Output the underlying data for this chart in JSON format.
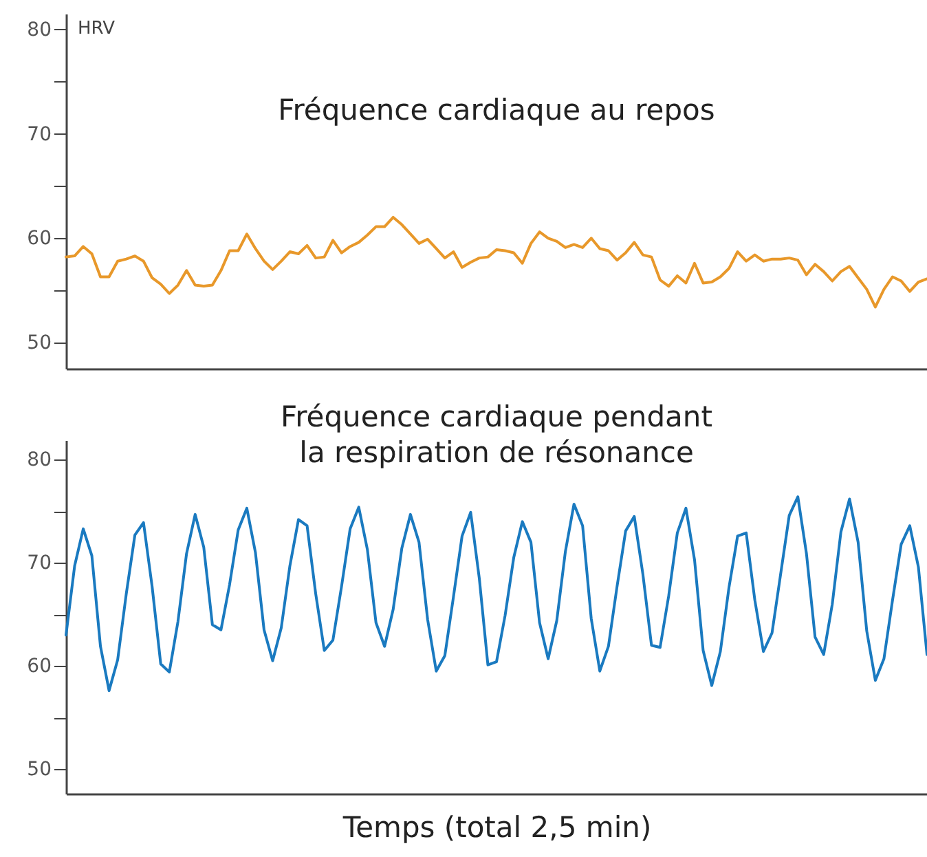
{
  "chart_data": [
    {
      "type": "line",
      "title": "Fréquence cardiaque au repos",
      "ylabel": "HRV",
      "categories": [
        null,
        null,
        null,
        null,
        null,
        null,
        null,
        null,
        null,
        null,
        null,
        null,
        null,
        null,
        null,
        null,
        null,
        null,
        null,
        null,
        null,
        null,
        null,
        null,
        null,
        null,
        null,
        null,
        null,
        null,
        null,
        null,
        null,
        null,
        null,
        null,
        null,
        null,
        null,
        null,
        null,
        null,
        null,
        null,
        null,
        null,
        null,
        null,
        null,
        null,
        null,
        null,
        null,
        null,
        null,
        null,
        null,
        null,
        null,
        null,
        null,
        null,
        null,
        null,
        null,
        null,
        null,
        null,
        null,
        null,
        null,
        null,
        null,
        null,
        null,
        null,
        null,
        null,
        null,
        null,
        null,
        null,
        null,
        null,
        null,
        null,
        null,
        null,
        null,
        null,
        null,
        null,
        null,
        null,
        null,
        null,
        null,
        null,
        null,
        null,
        null
      ],
      "ylim": [
        47.5,
        81.5
      ],
      "yticks": [
        50,
        {
          "value": 55,
          "label": null
        },
        60,
        {
          "value": 65,
          "label": null
        },
        70,
        {
          "value": 75,
          "label": null
        },
        80
      ],
      "tick_labels": "y",
      "grid": false,
      "series": [
        {
          "color": "#e8982a",
          "values": [
            58.2,
            58.3,
            59.2,
            58.5,
            56.3,
            56.3,
            57.8,
            58.0,
            58.3,
            57.8,
            56.2,
            55.6,
            54.7,
            55.5,
            56.9,
            55.5,
            55.4,
            55.5,
            56.9,
            58.8,
            58.8,
            60.4,
            59.0,
            57.8,
            57.0,
            57.8,
            58.7,
            58.5,
            59.3,
            58.1,
            58.2,
            59.8,
            58.6,
            59.2,
            59.6,
            60.3,
            61.1,
            61.1,
            62.0,
            61.3,
            60.4,
            59.5,
            59.9,
            59.0,
            58.1,
            58.7,
            57.2,
            57.7,
            58.1,
            58.2,
            58.9,
            58.8,
            58.6,
            57.6,
            59.5,
            60.6,
            60.0,
            59.7,
            59.1,
            59.4,
            59.1,
            60.0,
            59.0,
            58.8,
            57.9,
            58.6,
            59.6,
            58.4,
            58.2,
            56.0,
            55.4,
            56.4,
            55.7,
            57.6,
            55.7,
            55.8,
            56.3,
            57.1,
            58.7,
            57.8,
            58.4,
            57.8,
            58.0,
            58.0,
            58.1,
            57.9,
            56.5,
            57.5,
            56.8,
            55.9,
            56.8,
            57.3,
            56.2,
            55.1,
            53.4,
            55.1,
            56.3,
            55.9,
            54.9,
            55.8,
            56.1
          ]
        }
      ]
    },
    {
      "type": "line",
      "title": "Fréquence cardiaque pendant\nla respiration de résonance",
      "xlabel": "Temps (total 2,5 min)",
      "categories": [
        null,
        null,
        null,
        null,
        null,
        null,
        null,
        null,
        null,
        null,
        null,
        null,
        null,
        null,
        null,
        null,
        null,
        null,
        null,
        null,
        null,
        null,
        null,
        null,
        null,
        null,
        null,
        null,
        null,
        null,
        null,
        null,
        null,
        null,
        null,
        null,
        null,
        null,
        null,
        null,
        null,
        null,
        null,
        null,
        null,
        null,
        null,
        null,
        null,
        null,
        null,
        null,
        null,
        null,
        null,
        null,
        null,
        null,
        null,
        null,
        null,
        null,
        null,
        null,
        null,
        null,
        null,
        null,
        null,
        null,
        null,
        null,
        null,
        null,
        null,
        null,
        null,
        null,
        null,
        null,
        null,
        null,
        null,
        null,
        null,
        null,
        null,
        null,
        null,
        null,
        null,
        null,
        null,
        null,
        null,
        null,
        null,
        null,
        null,
        null,
        null
      ],
      "ylim": [
        47.6,
        81.9
      ],
      "yticks": [
        50,
        {
          "value": 55,
          "label": null
        },
        60,
        {
          "value": 65,
          "label": null
        },
        70,
        {
          "value": 75,
          "label": null
        },
        80
      ],
      "tick_labels": "y",
      "grid": false,
      "series": [
        {
          "color": "#1a7ac0",
          "values": [
            63.0,
            69.7,
            73.3,
            70.7,
            61.9,
            57.6,
            60.6,
            67.0,
            72.7,
            73.9,
            67.7,
            60.2,
            59.4,
            64.3,
            70.9,
            74.7,
            71.5,
            64.0,
            63.5,
            67.9,
            73.2,
            75.3,
            71.0,
            63.5,
            60.5,
            63.7,
            69.7,
            74.2,
            73.6,
            67.0,
            61.5,
            62.5,
            67.7,
            73.3,
            75.4,
            71.3,
            64.2,
            61.9,
            65.5,
            71.4,
            74.7,
            72.0,
            64.5,
            59.5,
            61.0,
            66.7,
            72.6,
            74.9,
            68.5,
            60.1,
            60.4,
            64.9,
            70.5,
            74.0,
            72.0,
            64.2,
            60.7,
            64.4,
            71.1,
            75.7,
            73.6,
            64.6,
            59.5,
            61.9,
            67.7,
            73.1,
            74.5,
            68.9,
            62.0,
            61.8,
            66.8,
            72.9,
            75.3,
            70.3,
            61.5,
            58.1,
            61.4,
            67.6,
            72.6,
            72.9,
            66.4,
            61.4,
            63.2,
            68.9,
            74.6,
            76.4,
            70.9,
            62.8,
            61.1,
            66.0,
            73.0,
            76.2,
            72.0,
            63.4,
            58.6,
            60.7,
            66.4,
            71.8,
            73.6,
            69.6,
            61.1
          ]
        }
      ]
    }
  ]
}
